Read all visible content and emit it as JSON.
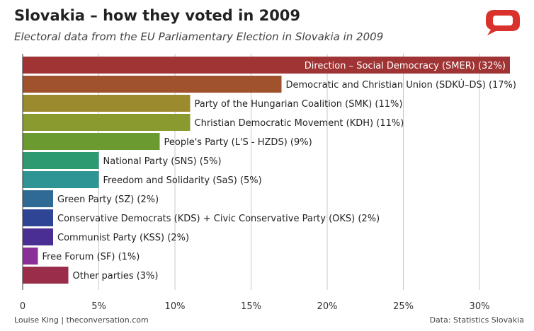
{
  "header": {
    "title": "Slovakia – how they voted in 2009",
    "subtitle": "Electoral data from the EU Parliamentary Election in Slovakia in 2009"
  },
  "footer": {
    "credit": "Louise King | theconversation.com",
    "source": "Data: Statistics Slovakia"
  },
  "chart_data": {
    "type": "bar",
    "orientation": "horizontal",
    "title": "Slovakia – how they voted in 2009",
    "subtitle": "Electoral data from the EU Parliamentary Election in Slovakia in 2009",
    "xlabel": "",
    "ylabel": "",
    "xlim": [
      0,
      32
    ],
    "grid": true,
    "x_ticks": [
      {
        "value": 0,
        "label": "0"
      },
      {
        "value": 5,
        "label": "5%"
      },
      {
        "value": 10,
        "label": "10%"
      },
      {
        "value": 15,
        "label": "15%"
      },
      {
        "value": 20,
        "label": "20%"
      },
      {
        "value": 25,
        "label": "25%"
      },
      {
        "value": 30,
        "label": "30%"
      }
    ],
    "categories": [
      "Direction – Social Democracy (SMER) (32%)",
      "Democratic and Christian Union (SDKÚ–DS) (17%)",
      "Party of the Hungarian Coalition (SMK) (11%)",
      "Christian Democratic Movement (KDH) (11%)",
      "People's Party (L'S - HZDS) (9%)",
      "National Party (SNS) (5%)",
      "Freedom and Solidarity (SaS) (5%)",
      "Green Party (SZ) (2%)",
      "Conservative Democrats (KDS) + Civic Conservative Party (OKS) (2%)",
      "Communist Party (KSS) (2%)",
      "Free Forum (SF) (1%)",
      "Other parties (3%)"
    ],
    "values": [
      32,
      17,
      11,
      11,
      9,
      5,
      5,
      2,
      2,
      2,
      1,
      3
    ],
    "colors": [
      "#a03434",
      "#a0522d",
      "#9b8a2e",
      "#8a9a2e",
      "#6a9a30",
      "#2e9a72",
      "#2e9494",
      "#2e6a94",
      "#2e4494",
      "#4a2e94",
      "#8a2e9a",
      "#9a2e4a"
    ]
  }
}
